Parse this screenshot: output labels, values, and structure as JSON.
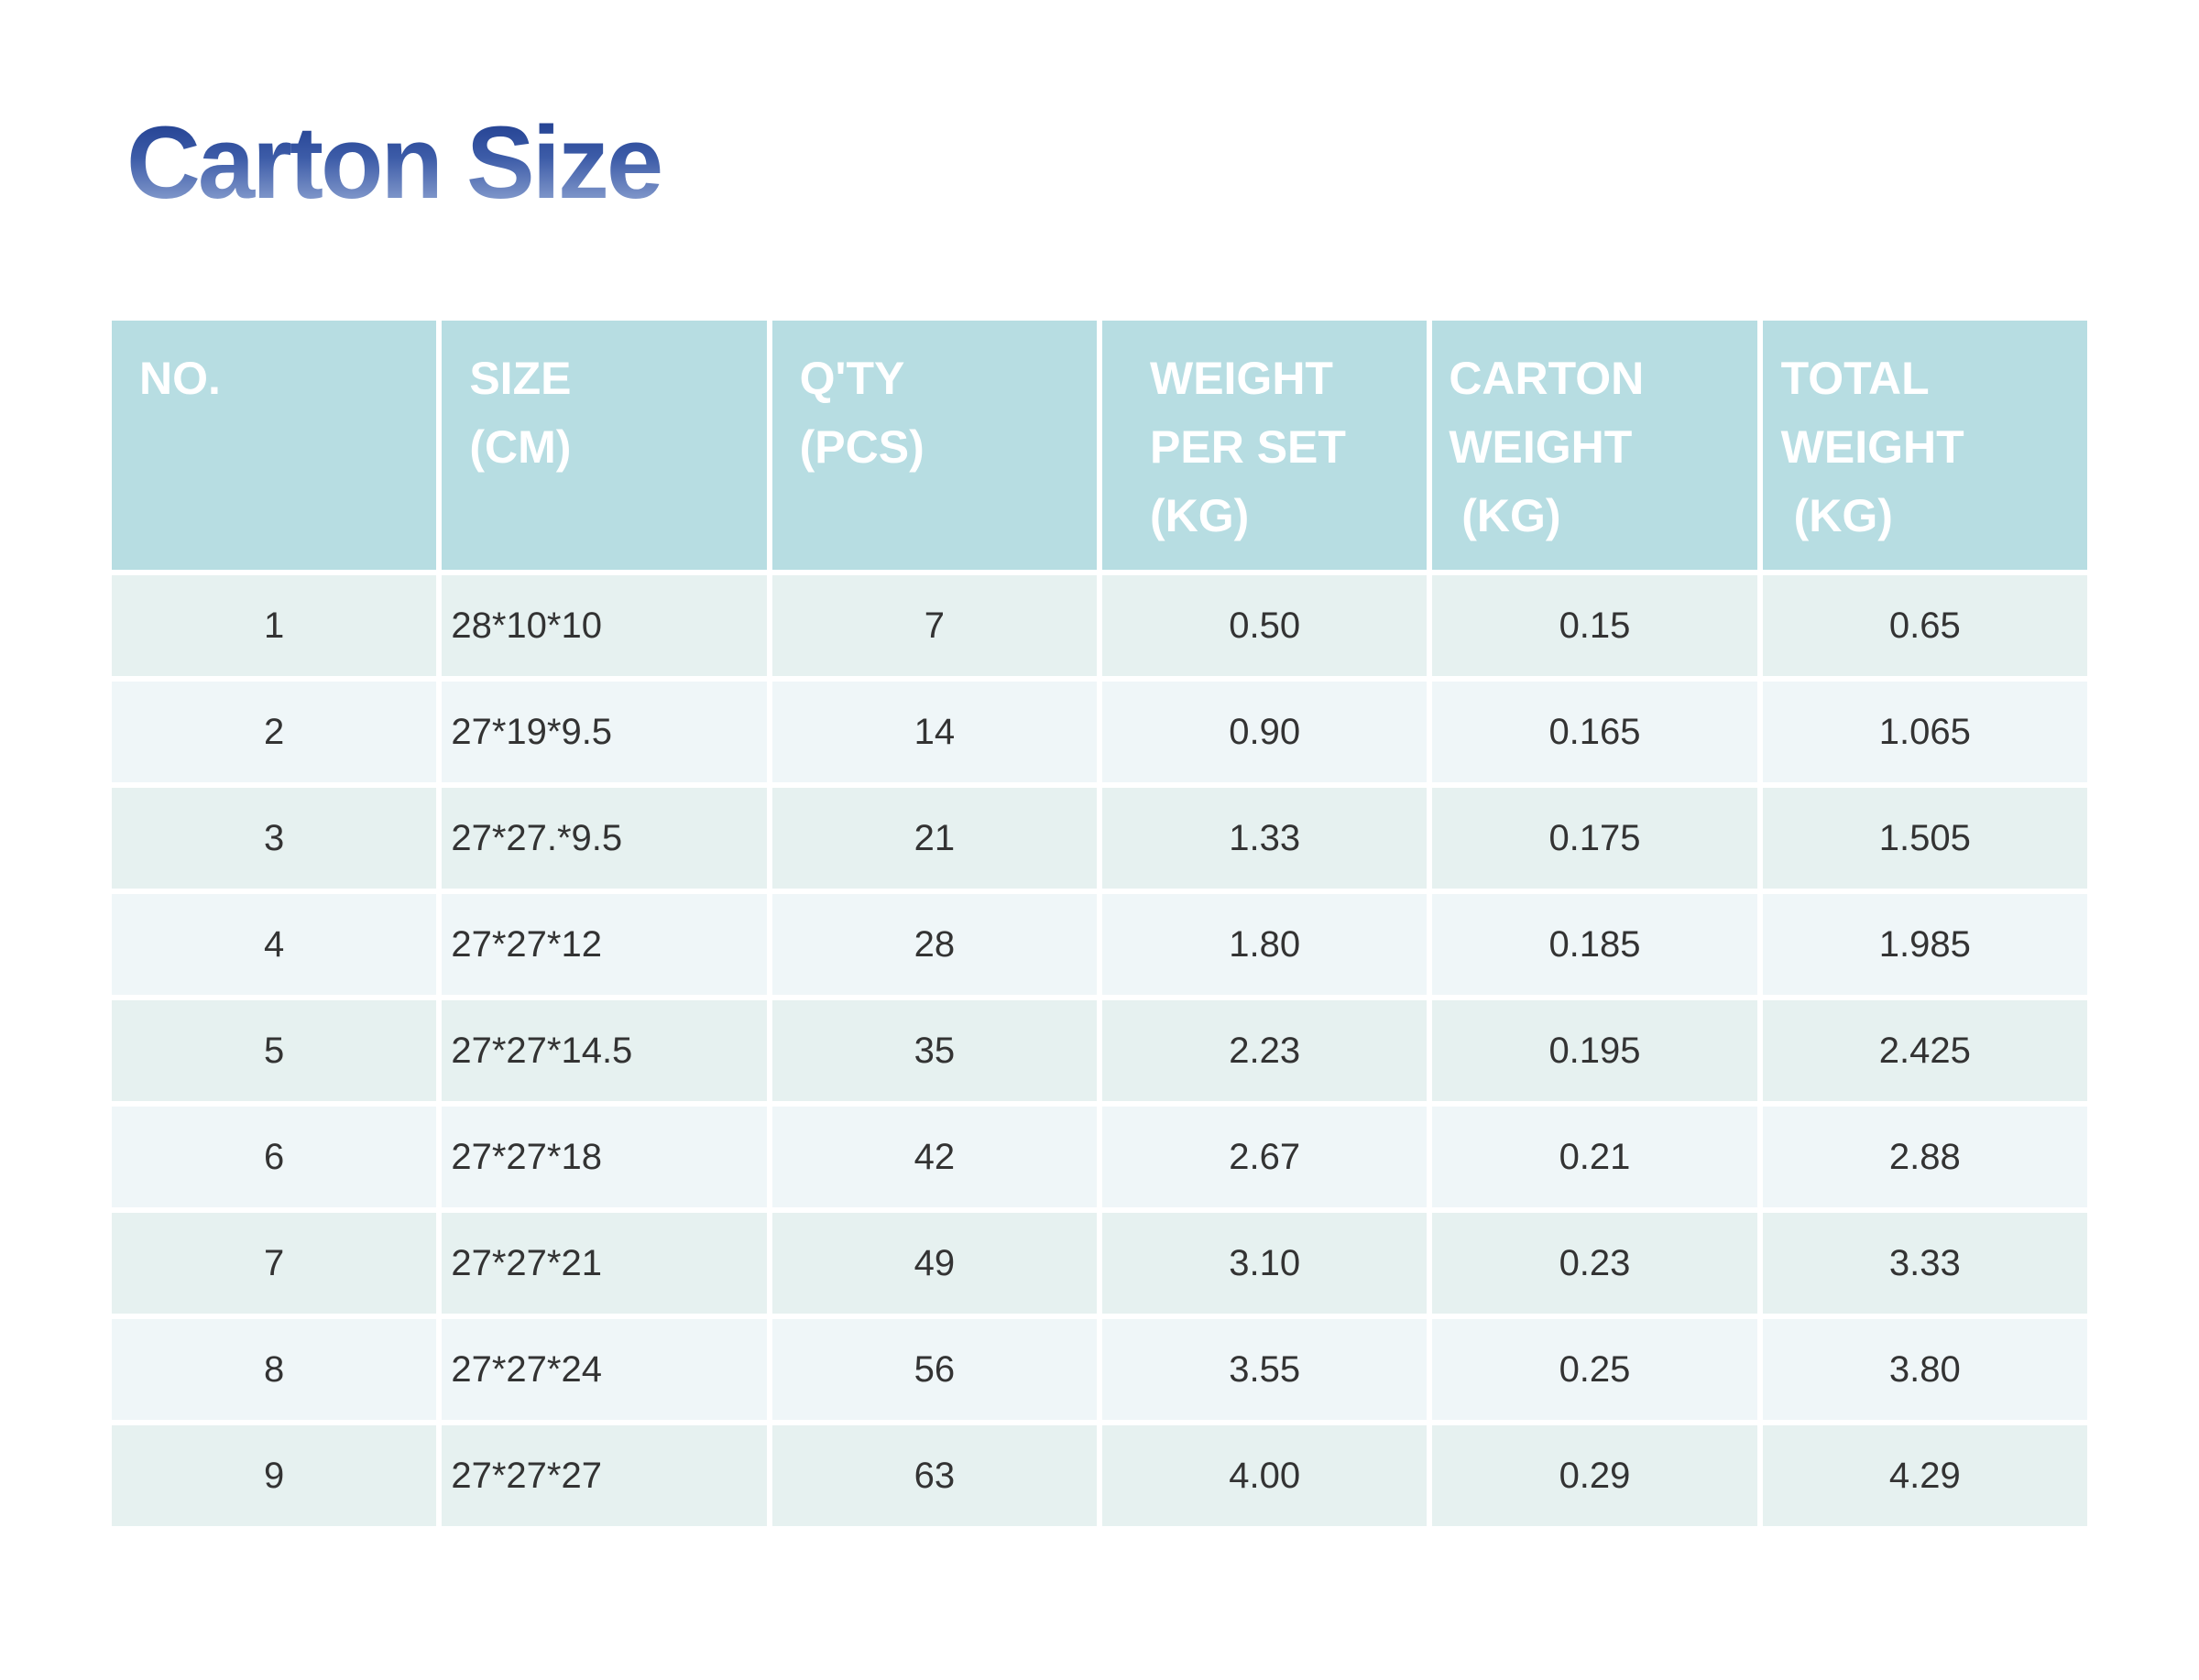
{
  "title": "Carton Size",
  "colors": {
    "page_bg": "#ffffff",
    "title_gradient_top": "#1d3b8d",
    "title_gradient_bottom": "#97abd6",
    "header_bg": "#b7dde2",
    "header_text": "#ffffff",
    "row_odd_bg": "#e6f1f0",
    "row_even_bg": "#eff6f8",
    "cell_text": "#333333"
  },
  "table": {
    "columns": [
      {
        "id": "no",
        "label": "NO."
      },
      {
        "id": "size",
        "label": "SIZE\n(CM)"
      },
      {
        "id": "qty",
        "label": "Q'TY\n(PCS)"
      },
      {
        "id": "weight_per_set",
        "label": "WEIGHT\nPER SET\n(KG)"
      },
      {
        "id": "carton_weight",
        "label": "CARTON\nWEIGHT\n（KG)"
      },
      {
        "id": "total_weight",
        "label": "TOTAL\nWEIGHT\n（KG）"
      }
    ],
    "rows": [
      [
        "1",
        "28*10*10",
        "7",
        "0.50",
        "0.15",
        "0.65"
      ],
      [
        "2",
        "27*19*9.5",
        "14",
        "0.90",
        "0.165",
        "1.065"
      ],
      [
        "3",
        "27*27.*9.5",
        "21",
        "1.33",
        "0.175",
        "1.505"
      ],
      [
        "4",
        "27*27*12",
        "28",
        "1.80",
        "0.185",
        "1.985"
      ],
      [
        "5",
        "27*27*14.5",
        "35",
        "2.23",
        "0.195",
        "2.425"
      ],
      [
        "6",
        "27*27*18",
        "42",
        "2.67",
        "0.21",
        "2.88"
      ],
      [
        "7",
        "27*27*21",
        "49",
        "3.10",
        "0.23",
        "3.33"
      ],
      [
        "8",
        "27*27*24",
        "56",
        "3.55",
        "0.25",
        "3.80"
      ],
      [
        "9",
        "27*27*27",
        "63",
        "4.00",
        "0.29",
        "4.29"
      ]
    ]
  }
}
